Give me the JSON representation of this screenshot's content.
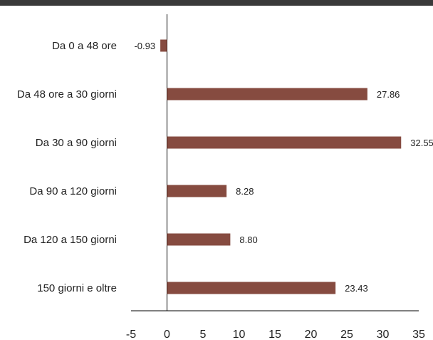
{
  "colors": {
    "bar": "#864b40",
    "axis": "#000000",
    "header_rule": "#3a3a3a"
  },
  "chart_data": {
    "type": "bar",
    "orientation": "horizontal",
    "categories": [
      "Da 0 a 48 ore",
      "Da 48 ore a 30 giorni",
      "Da 30 a 90 giorni",
      "Da 90 a 120 giorni",
      "Da 120 a 150 giorni",
      "150 giorni e oltre"
    ],
    "values": [
      -0.93,
      27.86,
      32.55,
      8.28,
      8.8,
      23.43
    ],
    "data_labels": [
      "-0.93",
      "27.86",
      "32.55",
      "8.28",
      "8.80",
      "23.43"
    ],
    "xlim": [
      -5,
      35
    ],
    "ticks": [
      -5,
      0,
      5,
      10,
      15,
      20,
      25,
      30,
      35
    ],
    "tick_labels": [
      "-5",
      "0",
      "5",
      "10",
      "15",
      "20",
      "25",
      "30",
      "35"
    ],
    "grid": false,
    "legend": "none",
    "title": "",
    "xlabel": "",
    "ylabel": ""
  }
}
